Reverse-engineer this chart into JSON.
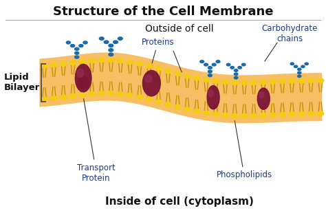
{
  "title": "Structure of the Cell Membrane",
  "outside_label": "Outside of cell",
  "inside_label": "Inside of cell (cytoplasm)",
  "lipid_bilayer_label": "Lipid\nBilayer",
  "proteins_label": "Proteins",
  "transport_protein_label": "Transport\nProtein",
  "phospholipids_label": "Phospholipids",
  "carbohydrate_label": "Carbohydrate\nchains",
  "bg_color": "#ffffff",
  "title_color": "#111111",
  "label_color": "#1a3a8a",
  "outside_inside_color": "#111111",
  "head_color": "#f5cc10",
  "head_edge": "#c89000",
  "tail_color": "#c89000",
  "blob_color": "#f5a830",
  "blob_alpha": 0.75,
  "protein_color": "#7a1535",
  "protein_highlight": "#a03060",
  "carbo_color": "#1a6aaa",
  "bracket_color": "#555555",
  "separator_color": "#aaaaaa",
  "title_fontsize": 13,
  "label_fontsize": 8,
  "outside_fontsize": 10,
  "inside_fontsize": 11
}
